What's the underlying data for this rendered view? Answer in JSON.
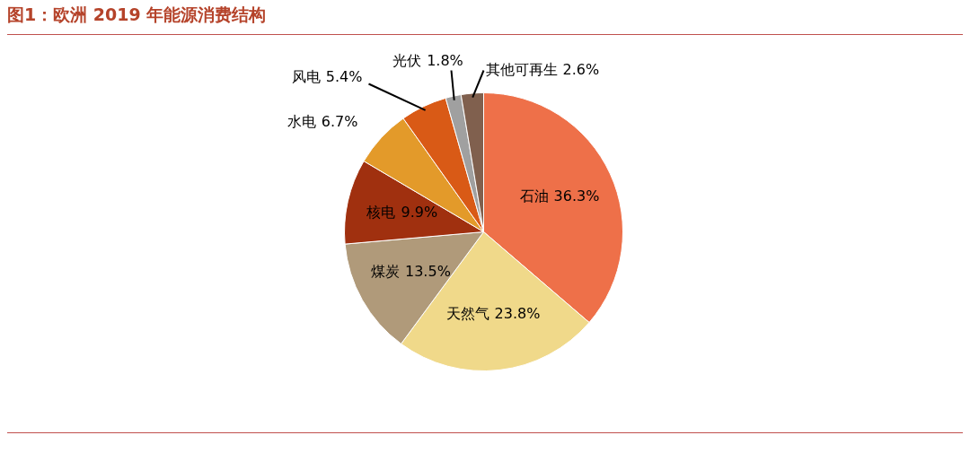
{
  "chart_data": {
    "type": "pie",
    "title": "图1：欧洲 2019 年能源消费结构",
    "categories": [
      "石油",
      "天然气",
      "煤炭",
      "核电",
      "水电",
      "风电",
      "光伏",
      "其他可再生"
    ],
    "values": [
      36.3,
      23.8,
      13.5,
      9.9,
      6.7,
      5.4,
      1.8,
      2.6
    ],
    "colors": [
      "#ee7049",
      "#f0d98a",
      "#b09a7a",
      "#a0300f",
      "#e39a2a",
      "#d95a16",
      "#a0a0a0",
      "#80604e"
    ],
    "value_labels": [
      "36.3%",
      "23.8%",
      "13.5%",
      "9.9%",
      "6.7%",
      "5.4%",
      "1.8%",
      "2.6%"
    ],
    "legend": false
  }
}
